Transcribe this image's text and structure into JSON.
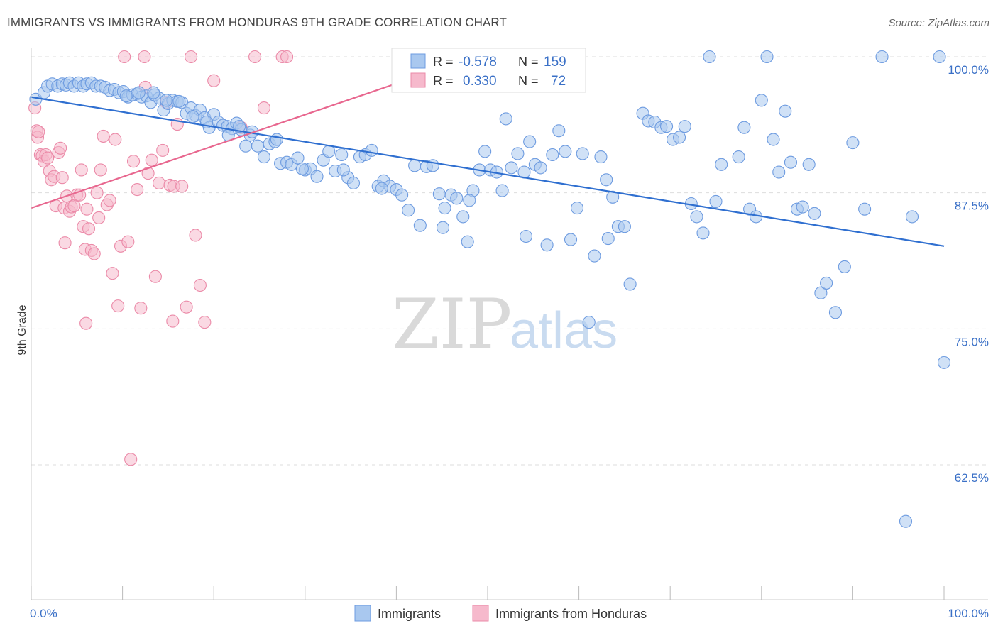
{
  "header": {
    "title": "IMMIGRANTS VS IMMIGRANTS FROM HONDURAS 9TH GRADE CORRELATION CHART",
    "source": "Source: ZipAtlas.com"
  },
  "watermark": {
    "zip": "ZIP",
    "atlas": "atlas"
  },
  "colors": {
    "blue_fill": "#a9c8ef",
    "blue_stroke": "#6d9be0",
    "blue_line": "#2f6fd0",
    "pink_fill": "#f6b9cc",
    "pink_stroke": "#eb8aa8",
    "pink_line": "#e8678f",
    "grid": "#dddddd",
    "tick_text": "#3a70c7"
  },
  "stats_box": {
    "rows": [
      {
        "r_label": "R =",
        "r_value": "-0.578",
        "n_label": "N =",
        "n_value": "159"
      },
      {
        "r_label": "R =",
        "r_value": "0.330",
        "n_label": "N =",
        "n_value": "72"
      }
    ]
  },
  "chart_data": {
    "type": "scatter",
    "xlabel": "",
    "ylabel": "9th Grade",
    "xlim": [
      0,
      100
    ],
    "ylim": [
      50,
      100
    ],
    "x_tick_labels": [
      "0.0%",
      "100.0%"
    ],
    "y_tick_labels": [
      "100.0%",
      "87.5%",
      "75.0%",
      "62.5%"
    ],
    "y_ticks": [
      100,
      87.5,
      75,
      62.5
    ],
    "grid": true,
    "legend_position": "bottom",
    "series": [
      {
        "name": "Immigrants",
        "color": "#a9c8ef",
        "trend": {
          "x": [
            0,
            100
          ],
          "y": [
            96.3,
            82.6
          ]
        },
        "points": [
          [
            0.5,
            96.1
          ],
          [
            1.4,
            96.7
          ],
          [
            1.8,
            97.3
          ],
          [
            2.3,
            97.5
          ],
          [
            2.9,
            97.3
          ],
          [
            3.4,
            97.5
          ],
          [
            3.8,
            97.4
          ],
          [
            4.2,
            97.6
          ],
          [
            4.7,
            97.3
          ],
          [
            5.2,
            97.6
          ],
          [
            5.7,
            97.3
          ],
          [
            6.1,
            97.5
          ],
          [
            6.6,
            97.6
          ],
          [
            7.1,
            97.3
          ],
          [
            7.6,
            97.3
          ],
          [
            8.1,
            97.2
          ],
          [
            8.6,
            96.9
          ],
          [
            9.1,
            97.0
          ],
          [
            9.6,
            96.7
          ],
          [
            10.1,
            96.8
          ],
          [
            10.6,
            96.3
          ],
          [
            11.1,
            96.5
          ],
          [
            11.6,
            96.6
          ],
          [
            12.1,
            96.3
          ],
          [
            12.6,
            96.4
          ],
          [
            13.1,
            95.8
          ],
          [
            13.5,
            96.5
          ],
          [
            14.0,
            96.2
          ],
          [
            14.5,
            95.1
          ],
          [
            15.0,
            95.7
          ],
          [
            15.5,
            96.0
          ],
          [
            16.0,
            95.9
          ],
          [
            16.5,
            95.8
          ],
          [
            17.0,
            94.8
          ],
          [
            17.5,
            95.3
          ],
          [
            18.0,
            94.6
          ],
          [
            18.5,
            95.1
          ],
          [
            19.0,
            94.4
          ],
          [
            19.5,
            93.5
          ],
          [
            20.0,
            94.7
          ],
          [
            20.5,
            94.0
          ],
          [
            21.0,
            93.7
          ],
          [
            21.5,
            93.6
          ],
          [
            22.0,
            93.4
          ],
          [
            22.5,
            93.9
          ],
          [
            23.0,
            93.3
          ],
          [
            23.5,
            91.8
          ],
          [
            24.0,
            92.8
          ],
          [
            24.8,
            91.8
          ],
          [
            25.5,
            90.8
          ],
          [
            26.1,
            92.0
          ],
          [
            26.7,
            92.2
          ],
          [
            27.3,
            90.2
          ],
          [
            28.0,
            90.3
          ],
          [
            28.5,
            90.1
          ],
          [
            29.2,
            90.7
          ],
          [
            30.0,
            89.6
          ],
          [
            30.6,
            89.7
          ],
          [
            31.3,
            89.0
          ],
          [
            32.0,
            90.5
          ],
          [
            32.6,
            91.3
          ],
          [
            33.3,
            89.5
          ],
          [
            34.0,
            91.0
          ],
          [
            34.7,
            88.9
          ],
          [
            35.3,
            88.4
          ],
          [
            36.0,
            90.8
          ],
          [
            36.6,
            91.0
          ],
          [
            37.3,
            91.4
          ],
          [
            38.0,
            88.1
          ],
          [
            38.6,
            88.6
          ],
          [
            39.3,
            88.1
          ],
          [
            40.0,
            87.8
          ],
          [
            40.6,
            87.3
          ],
          [
            41.3,
            85.9
          ],
          [
            42.0,
            90.0
          ],
          [
            42.6,
            84.5
          ],
          [
            43.3,
            89.9
          ],
          [
            44.0,
            90.0
          ],
          [
            44.7,
            87.4
          ],
          [
            45.3,
            86.1
          ],
          [
            46.0,
            87.3
          ],
          [
            46.6,
            87.0
          ],
          [
            47.3,
            85.3
          ],
          [
            47.8,
            83.0
          ],
          [
            48.4,
            87.7
          ],
          [
            49.1,
            89.6
          ],
          [
            49.7,
            91.3
          ],
          [
            50.3,
            89.6
          ],
          [
            51.0,
            89.4
          ],
          [
            51.6,
            87.7
          ],
          [
            52.0,
            94.3
          ],
          [
            52.6,
            89.8
          ],
          [
            53.3,
            91.1
          ],
          [
            54.0,
            89.4
          ],
          [
            54.6,
            92.2
          ],
          [
            55.2,
            90.1
          ],
          [
            55.8,
            89.8
          ],
          [
            56.5,
            82.7
          ],
          [
            57.1,
            91.0
          ],
          [
            57.8,
            93.2
          ],
          [
            58.5,
            91.3
          ],
          [
            59.1,
            83.2
          ],
          [
            59.8,
            86.1
          ],
          [
            60.4,
            91.1
          ],
          [
            61.1,
            75.6
          ],
          [
            61.7,
            81.7
          ],
          [
            62.4,
            90.8
          ],
          [
            63.0,
            88.7
          ],
          [
            63.7,
            87.1
          ],
          [
            64.3,
            84.4
          ],
          [
            65.0,
            84.4
          ],
          [
            65.6,
            79.1
          ],
          [
            67.0,
            94.8
          ],
          [
            67.6,
            94.1
          ],
          [
            68.3,
            94.0
          ],
          [
            69.0,
            93.5
          ],
          [
            69.6,
            93.6
          ],
          [
            70.3,
            92.4
          ],
          [
            71.0,
            92.6
          ],
          [
            71.6,
            93.6
          ],
          [
            72.3,
            86.5
          ],
          [
            72.9,
            85.3
          ],
          [
            73.6,
            83.8
          ],
          [
            74.3,
            100.0
          ],
          [
            75.0,
            86.7
          ],
          [
            75.6,
            90.1
          ],
          [
            77.5,
            90.8
          ],
          [
            78.1,
            93.5
          ],
          [
            78.7,
            86.0
          ],
          [
            79.4,
            85.3
          ],
          [
            80.0,
            96.0
          ],
          [
            80.6,
            100.0
          ],
          [
            81.3,
            92.4
          ],
          [
            81.9,
            89.4
          ],
          [
            82.6,
            95.0
          ],
          [
            83.2,
            90.3
          ],
          [
            83.9,
            86.0
          ],
          [
            84.5,
            86.2
          ],
          [
            85.2,
            90.1
          ],
          [
            85.8,
            85.6
          ],
          [
            86.5,
            78.3
          ],
          [
            87.1,
            79.2
          ],
          [
            88.1,
            76.5
          ],
          [
            89.1,
            80.7
          ],
          [
            90.0,
            92.1
          ],
          [
            91.3,
            86.0
          ],
          [
            93.2,
            100.0
          ],
          [
            95.8,
            57.3
          ],
          [
            96.5,
            85.3
          ],
          [
            99.5,
            100.0
          ],
          [
            100.0,
            71.9
          ],
          [
            63.2,
            83.3
          ],
          [
            54.2,
            83.5
          ],
          [
            48.0,
            86.8
          ],
          [
            45.1,
            84.3
          ],
          [
            38.4,
            87.9
          ],
          [
            34.2,
            89.6
          ],
          [
            29.7,
            89.7
          ],
          [
            26.9,
            92.4
          ],
          [
            24.2,
            93.1
          ],
          [
            22.8,
            93.6
          ],
          [
            21.6,
            92.8
          ],
          [
            19.2,
            94.0
          ],
          [
            17.7,
            94.5
          ],
          [
            16.2,
            95.9
          ],
          [
            14.8,
            96.0
          ],
          [
            13.4,
            96.7
          ],
          [
            11.8,
            96.7
          ],
          [
            10.4,
            96.4
          ]
        ]
      },
      {
        "name": "Immigrants from Honduras",
        "color": "#f6b9cc",
        "trend": {
          "x": [
            0,
            48.6
          ],
          "y": [
            86.1,
            100.0
          ]
        },
        "points": [
          [
            0.4,
            95.3
          ],
          [
            0.6,
            93.2
          ],
          [
            0.7,
            92.6
          ],
          [
            0.8,
            93.1
          ],
          [
            1.0,
            91.0
          ],
          [
            1.2,
            90.9
          ],
          [
            1.4,
            90.4
          ],
          [
            1.6,
            91.0
          ],
          [
            1.8,
            90.7
          ],
          [
            2.0,
            89.5
          ],
          [
            2.2,
            88.7
          ],
          [
            2.5,
            89.0
          ],
          [
            2.7,
            86.3
          ],
          [
            3.0,
            91.2
          ],
          [
            3.2,
            91.6
          ],
          [
            3.4,
            88.9
          ],
          [
            3.6,
            86.1
          ],
          [
            3.9,
            87.2
          ],
          [
            4.2,
            85.8
          ],
          [
            4.4,
            86.2
          ],
          [
            4.7,
            86.3
          ],
          [
            5.0,
            87.3
          ],
          [
            5.3,
            87.3
          ],
          [
            5.5,
            89.6
          ],
          [
            5.7,
            84.4
          ],
          [
            5.9,
            82.3
          ],
          [
            6.1,
            86.0
          ],
          [
            6.3,
            84.2
          ],
          [
            6.6,
            82.2
          ],
          [
            6.9,
            81.9
          ],
          [
            7.2,
            87.5
          ],
          [
            7.4,
            85.2
          ],
          [
            7.6,
            89.6
          ],
          [
            7.9,
            92.7
          ],
          [
            8.3,
            86.4
          ],
          [
            8.6,
            86.8
          ],
          [
            8.9,
            80.1
          ],
          [
            9.2,
            92.4
          ],
          [
            9.5,
            77.1
          ],
          [
            9.8,
            82.6
          ],
          [
            10.2,
            100.0
          ],
          [
            10.6,
            83.0
          ],
          [
            10.9,
            63.0
          ],
          [
            11.2,
            90.4
          ],
          [
            11.6,
            87.8
          ],
          [
            12.0,
            76.9
          ],
          [
            12.4,
            100.0
          ],
          [
            12.8,
            89.3
          ],
          [
            13.2,
            90.5
          ],
          [
            13.6,
            79.8
          ],
          [
            14.0,
            88.4
          ],
          [
            14.4,
            91.4
          ],
          [
            14.8,
            95.8
          ],
          [
            15.2,
            88.2
          ],
          [
            15.6,
            88.1
          ],
          [
            16.0,
            93.8
          ],
          [
            16.5,
            88.1
          ],
          [
            17.0,
            77.0
          ],
          [
            17.5,
            100.0
          ],
          [
            18.0,
            83.6
          ],
          [
            18.5,
            79.0
          ],
          [
            19.0,
            75.6
          ],
          [
            20.0,
            97.8
          ],
          [
            24.5,
            100.0
          ],
          [
            25.5,
            95.3
          ],
          [
            27.5,
            100.0
          ],
          [
            28.0,
            100.0
          ],
          [
            6.0,
            75.5
          ],
          [
            15.5,
            75.7
          ],
          [
            23.0,
            93.5
          ],
          [
            12.5,
            97.2
          ],
          [
            3.7,
            82.9
          ]
        ]
      }
    ]
  },
  "legend": {
    "items": [
      {
        "label": "Immigrants"
      },
      {
        "label": "Immigrants from Honduras"
      }
    ]
  }
}
